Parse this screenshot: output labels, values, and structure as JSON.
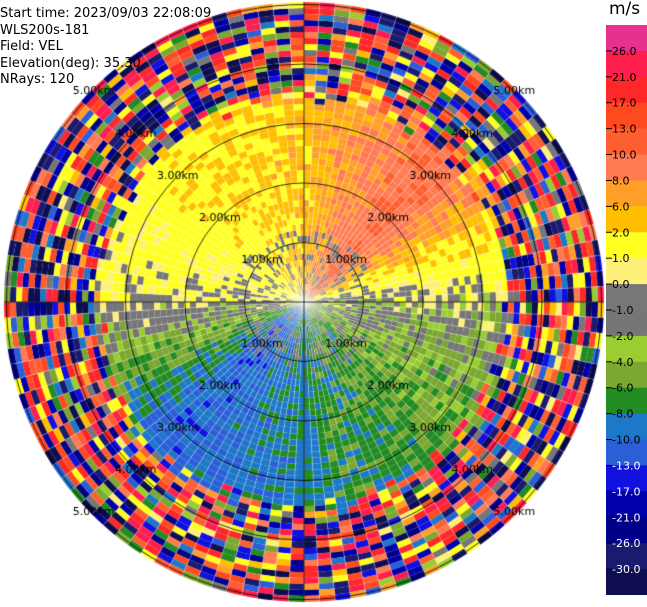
{
  "info": {
    "start_time": "Start time: 2023/09/03 22:08:09",
    "site": "WLS200s-181",
    "field": "Field: VEL",
    "elevation": "Elevation(deg): 35.30",
    "nrays": "NRays: 120"
  },
  "chart_data": {
    "type": "heatmap",
    "projection": "polar-ppi",
    "nrays": 120,
    "range_rings_km": [
      1.0,
      2.0,
      3.0,
      4.0,
      5.0
    ],
    "range_ring_labels": [
      "1.00km",
      "2.00km",
      "3.00km",
      "4.00km",
      "5.00km"
    ],
    "unit": "m/s",
    "colorbar_ticks": [
      "26.0",
      "21.0",
      "17.0",
      "13.0",
      "10.0",
      "8.0",
      "6.0",
      "2.0",
      "1.0",
      "0.0",
      "-1.0",
      "-2.0",
      "-4.0",
      "-6.0",
      "-8.0",
      "-10.0",
      "-13.0",
      "-17.0",
      "-21.0",
      "-26.0",
      "-30.0"
    ],
    "colorbar_colors": [
      "#e8318f",
      "#ff1f4f",
      "#ff2828",
      "#ff4a20",
      "#ff5f30",
      "#ff7b52",
      "#ff9f28",
      "#ffbf00",
      "#ffff20",
      "#fff07a",
      "#777777",
      "#767676",
      "#9acd32",
      "#7aa830",
      "#228b22",
      "#1e78c8",
      "#2a5fd8",
      "#1010e0",
      "#0000aa",
      "#000088",
      "#1a1a6e",
      "#0d0d4f"
    ],
    "quadrant_mean_velocity_ms": {
      "north": 7.0,
      "northeast": 13.0,
      "east": 0.0,
      "southeast": -4.0,
      "south": -6.0,
      "southwest": -9.0,
      "west": 1.0,
      "northwest": 5.0
    },
    "noise_beyond_km": 3.4
  }
}
